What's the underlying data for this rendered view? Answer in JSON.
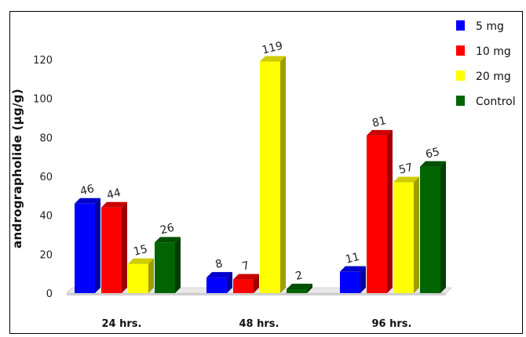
{
  "chart_data": {
    "type": "bar",
    "categories": [
      "24 hrs.",
      "48 hrs.",
      "96 hrs."
    ],
    "series": [
      {
        "name": "5 mg",
        "values": [
          46,
          8,
          11
        ],
        "color": "#0000ff"
      },
      {
        "name": "10 mg",
        "values": [
          44,
          7,
          81
        ],
        "color": "#ff0000"
      },
      {
        "name": "20 mg",
        "values": [
          15,
          119,
          57
        ],
        "color": "#ffff00"
      },
      {
        "name": "Control",
        "values": [
          26,
          2,
          65
        ],
        "color": "#006400"
      }
    ],
    "ylabel": "andrographolide (μg/g)",
    "xlabel": "",
    "ylim": [
      0,
      120
    ],
    "yticks": [
      0,
      20,
      40,
      60,
      80,
      100,
      120
    ],
    "grid": false,
    "legend": "top-right",
    "style": "3d"
  }
}
